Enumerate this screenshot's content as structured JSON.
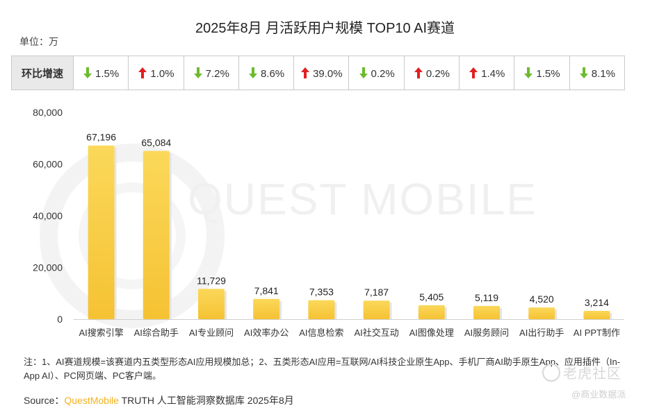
{
  "title": "2025年8月 月活跃用户规模 TOP10 AI赛道",
  "unit_label": "单位：万",
  "growth_row": {
    "header": "环比增速",
    "items": [
      {
        "direction": "down",
        "value": "1.5%"
      },
      {
        "direction": "up",
        "value": "1.0%"
      },
      {
        "direction": "down",
        "value": "7.2%"
      },
      {
        "direction": "down",
        "value": "8.6%"
      },
      {
        "direction": "up",
        "value": "39.0%"
      },
      {
        "direction": "down",
        "value": "0.2%"
      },
      {
        "direction": "up",
        "value": "0.2%"
      },
      {
        "direction": "up",
        "value": "1.4%"
      },
      {
        "direction": "down",
        "value": "1.5%"
      },
      {
        "direction": "down",
        "value": "8.1%"
      }
    ],
    "colors": {
      "up": "#e02020",
      "down": "#6cbb2c"
    }
  },
  "chart_data": {
    "type": "bar",
    "categories": [
      "AI搜索引擎",
      "AI综合助手",
      "AI专业顾问",
      "AI效率办公",
      "AI信息检索",
      "AI社交互动",
      "AI图像处理",
      "AI服务顾问",
      "AI出行助手",
      "AI PPT制作"
    ],
    "values": [
      67196,
      65084,
      11729,
      7841,
      7353,
      7187,
      5405,
      5119,
      4520,
      3214
    ],
    "value_labels": [
      "67,196",
      "65,084",
      "11,729",
      "7,841",
      "7,353",
      "7,187",
      "5,405",
      "5,119",
      "4,520",
      "3,214"
    ],
    "ylim": [
      0,
      80000
    ],
    "yticks": [
      0,
      20000,
      40000,
      60000,
      80000
    ],
    "ytick_labels": [
      "0",
      "20,000",
      "40,000",
      "60,000",
      "80,000"
    ],
    "bar_color": "#f5c233",
    "bar_color_light": "#fbd85a",
    "grid": false
  },
  "watermark": "QUEST MOBILE",
  "note": "注：1、AI赛道规模=该赛道内五类型形态AI应用规模加总；2、五类形态AI应用=互联网/AI科技企业原生App、手机厂商AI助手原生App、应用插件（In-App AI）、PC网页端、PC客户端。",
  "source": {
    "prefix": "Source：",
    "brand": "QuestMobile",
    "rest": " TRUTH 人工智能洞察数据库 2025年8月"
  },
  "logo": {
    "main": "老虎社区",
    "sub": "@商业数据派"
  }
}
